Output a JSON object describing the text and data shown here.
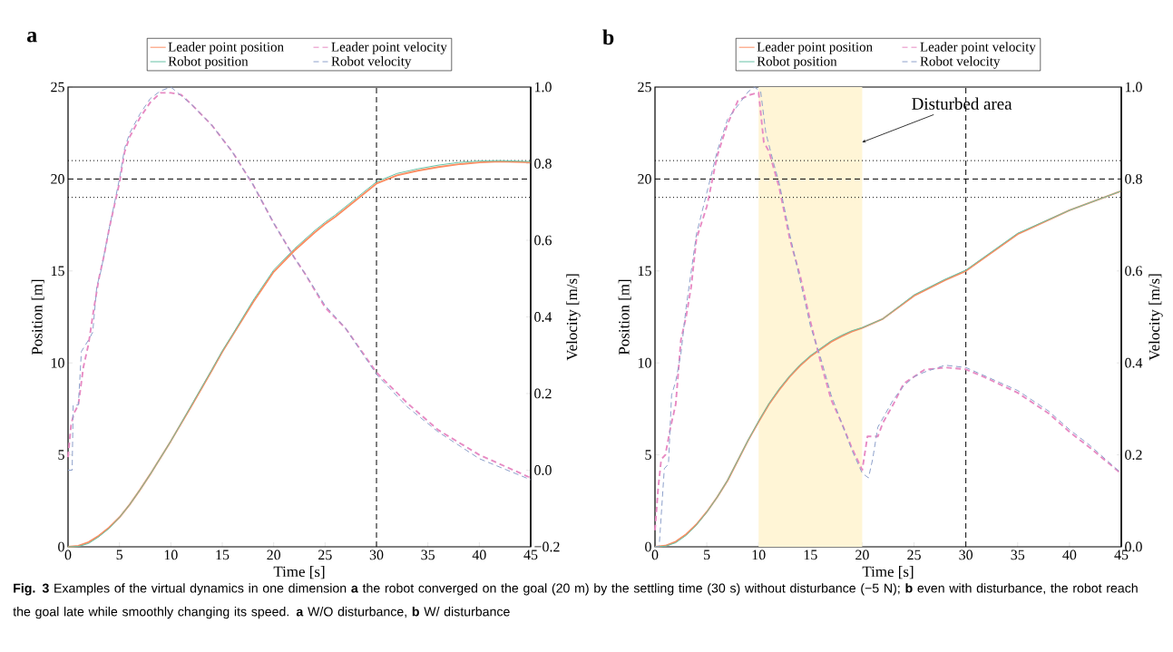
{
  "chart_data": [
    {
      "type": "line",
      "title": "a",
      "xlabel": "Time [s]",
      "ylabel": "Position [m]",
      "y2label": "Velocity [m/s]",
      "xlim": [
        0,
        45
      ],
      "xticks": [
        0,
        5,
        10,
        15,
        20,
        25,
        30,
        35,
        40,
        45
      ],
      "ylim": [
        0,
        25
      ],
      "yticks": [
        0,
        5,
        10,
        15,
        20,
        25
      ],
      "y2lim": [
        -0.2,
        1.0
      ],
      "y2ticks": [
        {
          "value": -0.2,
          "label": "−0.2"
        },
        {
          "value": 0,
          "label": "0.0"
        },
        0.2,
        0.4,
        0.6,
        0.8,
        {
          "value": 1.0,
          "label": "1.0"
        }
      ],
      "legend": "top",
      "ref_lines": [
        {
          "axis": "y",
          "value": 20,
          "color": "#000000",
          "line_style": "dashed"
        },
        {
          "axis": "y",
          "value": 21,
          "color": "#000000",
          "line_style": "dotted"
        },
        {
          "axis": "y",
          "value": 19,
          "color": "#000000",
          "line_style": "dotted"
        },
        {
          "axis": "x",
          "value": 30,
          "color": "#000000",
          "line_style": "dashed"
        }
      ],
      "series": [
        {
          "name": "Leader point position",
          "color": "#fc8d62",
          "line_style": "solid",
          "x": [
            0,
            1,
            2,
            3,
            4,
            5,
            6,
            7,
            8,
            9,
            10,
            12,
            14,
            15,
            16,
            18,
            20,
            22,
            24,
            25,
            26,
            28,
            30,
            32,
            34,
            36,
            38,
            40,
            42,
            45
          ],
          "values": [
            0,
            0.05,
            0.25,
            0.6,
            1.05,
            1.6,
            2.3,
            3.1,
            3.95,
            4.85,
            5.75,
            7.65,
            9.6,
            10.6,
            11.5,
            13.3,
            14.95,
            16.1,
            17.1,
            17.55,
            17.95,
            18.85,
            19.75,
            20.2,
            20.45,
            20.65,
            20.8,
            20.9,
            20.95,
            20.9
          ]
        },
        {
          "name": "Robot position",
          "color": "#66c2a5",
          "line_style": "solid",
          "x": [
            0,
            1,
            2,
            3,
            4,
            5,
            6,
            7,
            8,
            9,
            10,
            12,
            14,
            15,
            16,
            18,
            20,
            22,
            24,
            25,
            26,
            28,
            30,
            32,
            34,
            36,
            38,
            40,
            42,
            45
          ],
          "values": [
            0,
            0.02,
            0.18,
            0.55,
            1.0,
            1.6,
            2.3,
            3.1,
            3.95,
            4.85,
            5.75,
            7.7,
            9.65,
            10.65,
            11.55,
            13.4,
            15.05,
            16.2,
            17.2,
            17.65,
            18.05,
            18.95,
            19.85,
            20.3,
            20.55,
            20.75,
            20.9,
            20.98,
            21.0,
            20.95
          ]
        },
        {
          "name": "Leader point velocity",
          "color": "#e78ac3",
          "line_style": "dashed",
          "axis": "y2",
          "x": [
            0,
            0.3,
            0.6,
            1,
            1.5,
            2,
            2.5,
            3,
            3.5,
            4,
            5,
            5.5,
            6,
            7,
            8,
            9,
            10,
            11,
            12,
            14,
            16,
            18,
            20,
            22,
            23,
            25,
            27,
            30,
            33,
            36,
            40,
            45
          ],
          "values": [
            0.034,
            0.12,
            0.15,
            0.17,
            0.27,
            0.33,
            0.42,
            0.5,
            0.56,
            0.63,
            0.75,
            0.83,
            0.87,
            0.92,
            0.96,
            0.985,
            0.985,
            0.98,
            0.955,
            0.9,
            0.83,
            0.745,
            0.645,
            0.555,
            0.515,
            0.425,
            0.37,
            0.255,
            0.175,
            0.105,
            0.04,
            -0.02
          ]
        },
        {
          "name": "Robot velocity",
          "color": "#8da0cb",
          "line_style": "dashed",
          "axis": "y2",
          "x": [
            0,
            0.4,
            0.5,
            1,
            1.3,
            2,
            2.4,
            2.8,
            3.2,
            4,
            5,
            5.5,
            6,
            7,
            8,
            9,
            10,
            12,
            14,
            16,
            18,
            20,
            22,
            23,
            25,
            27,
            30,
            33,
            36,
            40,
            45
          ],
          "values": [
            0,
            0,
            0.17,
            0.17,
            0.31,
            0.34,
            0.36,
            0.48,
            0.52,
            0.63,
            0.76,
            0.84,
            0.88,
            0.93,
            0.97,
            0.99,
            1.0,
            0.955,
            0.9,
            0.83,
            0.745,
            0.645,
            0.555,
            0.515,
            0.43,
            0.37,
            0.25,
            0.165,
            0.1,
            0.03,
            -0.025
          ]
        }
      ]
    },
    {
      "type": "line",
      "title": "b",
      "xlabel": "Time [s]",
      "ylabel": "Position [m]",
      "y2label": "Velocity [m/s]",
      "xlim": [
        0,
        45
      ],
      "xticks": [
        0,
        5,
        10,
        15,
        20,
        25,
        30,
        35,
        40,
        45
      ],
      "ylim": [
        0,
        25
      ],
      "yticks": [
        0,
        5,
        10,
        15,
        20,
        25
      ],
      "y2lim": [
        0,
        1.0
      ],
      "y2ticks": [
        {
          "value": 0,
          "label": "0.0"
        },
        0.2,
        0.4,
        0.6,
        0.8,
        {
          "value": 1.0,
          "label": "1.0"
        }
      ],
      "legend": "top",
      "ref_lines": [
        {
          "axis": "y",
          "value": 20,
          "color": "#000000",
          "line_style": "dashed"
        },
        {
          "axis": "y",
          "value": 21,
          "color": "#000000",
          "line_style": "dotted"
        },
        {
          "axis": "y",
          "value": 19,
          "color": "#000000",
          "line_style": "dotted"
        },
        {
          "axis": "x",
          "value": 30,
          "color": "#000000",
          "line_style": "dashed"
        }
      ],
      "bands": [
        {
          "axis": "x",
          "from": 10,
          "to": 20,
          "color": "#fff5d6"
        }
      ],
      "annotations": [
        {
          "text": "Disturbed area",
          "x": 20,
          "y": 22
        },
        "**Fig. 3** Examples of the virtual dynamics in one dimension **a** the robot converged on the goal (20 m) by the settling time (30 s) without disturbance (−5 N); **b** even with disturbance, the robot reach the goal late while smoothly changing its speed. **a** W/O disturbance, **b** W/ disturbance"
      ],
      "series": [
        {
          "name": "Leader point position",
          "color": "#fc8d62",
          "line_style": "solid",
          "x": [
            0,
            1,
            2,
            3,
            4,
            5,
            6,
            7,
            8,
            9,
            10,
            11,
            12,
            13,
            14,
            15,
            16,
            17,
            18,
            19,
            20,
            22,
            25,
            28,
            30,
            35,
            40,
            45
          ],
          "values": [
            0,
            0.06,
            0.28,
            0.68,
            1.22,
            1.9,
            2.7,
            3.6,
            4.7,
            5.8,
            6.8,
            7.75,
            8.55,
            9.25,
            9.85,
            10.35,
            10.75,
            11.15,
            11.45,
            11.7,
            11.9,
            12.4,
            13.65,
            14.5,
            15.0,
            17.0,
            18.3,
            19.35
          ]
        },
        {
          "name": "Robot position",
          "color": "#66c2a5",
          "line_style": "solid",
          "x": [
            0,
            1,
            2,
            3,
            4,
            5,
            6,
            7,
            8,
            9,
            10,
            11,
            12,
            13,
            14,
            15,
            16,
            17,
            18,
            19,
            20,
            22,
            25,
            28,
            30,
            35,
            40,
            45
          ],
          "values": [
            0,
            0.03,
            0.22,
            0.62,
            1.18,
            1.88,
            2.7,
            3.62,
            4.72,
            5.82,
            6.84,
            7.8,
            8.6,
            9.3,
            9.9,
            10.4,
            10.8,
            11.2,
            11.5,
            11.75,
            11.92,
            12.4,
            13.7,
            14.55,
            15.05,
            17.05,
            18.3,
            19.35
          ]
        },
        {
          "name": "Leader point velocity",
          "color": "#e78ac3",
          "line_style": "dashed",
          "axis": "y2",
          "x": [
            0,
            0.3,
            0.6,
            1,
            1.5,
            2,
            2.5,
            3,
            3.5,
            4,
            5,
            6,
            7,
            8,
            9,
            10,
            10.5,
            11,
            12,
            13,
            14,
            15,
            16,
            17,
            18,
            19,
            20,
            20.5,
            21.5,
            22,
            23,
            24,
            25,
            26,
            28,
            30,
            32,
            35,
            38,
            40,
            42,
            45
          ],
          "values": [
            0.036,
            0.126,
            0.19,
            0.2,
            0.26,
            0.31,
            0.45,
            0.5,
            0.567,
            0.67,
            0.74,
            0.85,
            0.92,
            0.97,
            0.982,
            0.988,
            0.88,
            0.86,
            0.78,
            0.67,
            0.59,
            0.49,
            0.4,
            0.32,
            0.27,
            0.215,
            0.167,
            0.24,
            0.24,
            0.27,
            0.31,
            0.355,
            0.37,
            0.385,
            0.39,
            0.386,
            0.367,
            0.335,
            0.29,
            0.25,
            0.215,
            0.159
          ]
        },
        {
          "name": "Robot velocity",
          "color": "#8da0cb",
          "line_style": "dashed",
          "axis": "y2",
          "x": [
            0,
            0.4,
            0.9,
            1.3,
            1.6,
            2,
            2.5,
            3,
            3.5,
            4,
            5,
            6,
            7,
            8,
            9,
            9.6,
            10.2,
            10.7,
            11.5,
            12,
            13,
            14,
            15,
            16,
            17,
            18,
            19,
            20,
            20.6,
            21,
            21.5,
            22,
            23,
            24,
            25,
            26,
            28,
            30,
            32,
            35,
            38,
            40,
            42,
            45
          ],
          "values": [
            0,
            0,
            0.17,
            0.18,
            0.33,
            0.36,
            0.42,
            0.52,
            0.6,
            0.68,
            0.77,
            0.86,
            0.93,
            0.96,
            0.99,
            1.0,
            0.99,
            0.9,
            0.83,
            0.79,
            0.68,
            0.58,
            0.48,
            0.41,
            0.33,
            0.27,
            0.21,
            0.16,
            0.15,
            0.19,
            0.26,
            0.28,
            0.32,
            0.35,
            0.37,
            0.38,
            0.395,
            0.39,
            0.37,
            0.34,
            0.295,
            0.255,
            0.22,
            0.16
          ]
        }
      ]
    }
  ]
}
